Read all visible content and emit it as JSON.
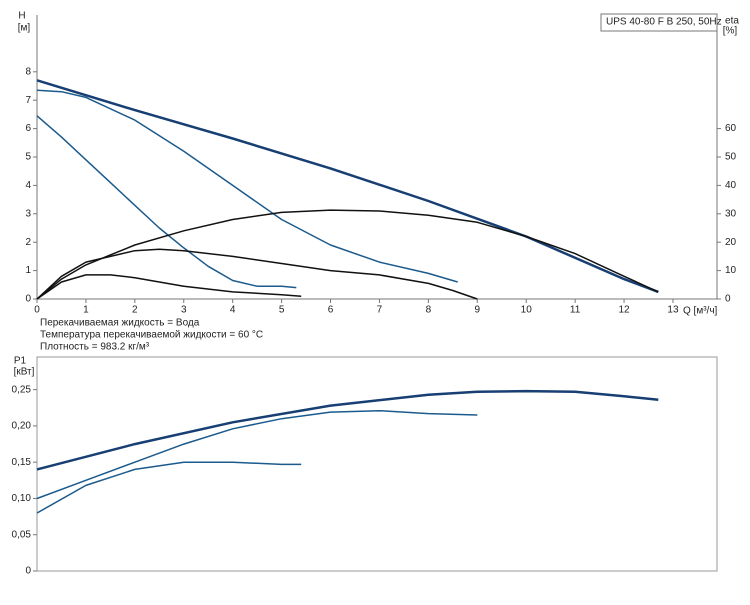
{
  "chart_data": [
    {
      "type": "line",
      "title": "UPS 40-80 F B 250, 50Hz",
      "x_label": "Q [м³/ч]",
      "y_label": "H",
      "y_unit": "[м]",
      "y2_label": "eta",
      "y2_unit": "[%]",
      "notes": [
        "Перекачиваемая жидкость = Вода",
        "Температура перекачиваемой жидкости = 60 °C",
        "Плотность = 983.2 кг/м³"
      ],
      "xlim": [
        0,
        13.9
      ],
      "xticks": [
        0,
        1,
        2,
        3,
        4,
        5,
        6,
        7,
        8,
        9,
        10,
        11,
        12,
        13
      ],
      "ylim": [
        0,
        10
      ],
      "yticks": [
        0,
        1,
        2,
        3,
        4,
        5,
        6,
        7,
        8
      ],
      "y2lim": [
        0,
        100
      ],
      "y2ticks": [
        0,
        10,
        20,
        30,
        40,
        50,
        60
      ],
      "series": [
        {
          "color": "#173f73",
          "x": [
            0,
            2,
            4,
            6,
            8,
            10,
            12,
            12.7
          ],
          "values": [
            7.7,
            6.65,
            5.65,
            4.6,
            3.45,
            2.2,
            0.7,
            0.25
          ]
        },
        {
          "color": "#1b5a8c",
          "x": [
            0,
            0.5,
            1,
            2,
            3,
            4,
            5,
            6,
            7,
            8,
            8.6
          ],
          "values": [
            7.35,
            7.3,
            7.1,
            6.3,
            5.2,
            4.0,
            2.8,
            1.9,
            1.3,
            0.9,
            0.6
          ]
        },
        {
          "color": "#1b5a8c",
          "x": [
            0,
            0.5,
            1,
            1.5,
            2,
            2.5,
            3,
            3.5,
            4,
            4.5,
            5,
            5.3
          ],
          "values": [
            6.45,
            5.7,
            4.9,
            4.1,
            3.3,
            2.5,
            1.8,
            1.15,
            0.65,
            0.45,
            0.45,
            0.4
          ]
        },
        {
          "color": "#111111",
          "axis": "y2",
          "x": [
            0,
            0.5,
            1,
            2,
            3,
            4,
            5,
            6,
            7,
            8,
            9,
            10,
            11,
            12,
            12.7
          ],
          "values": [
            0,
            7,
            12,
            19,
            24,
            28,
            30.5,
            31.3,
            31,
            29.5,
            27,
            22,
            16,
            8,
            2.5
          ]
        },
        {
          "color": "#111111",
          "axis": "y2",
          "x": [
            0,
            0.5,
            1,
            2,
            2.5,
            3,
            4,
            5,
            6,
            7,
            8,
            8.5,
            9
          ],
          "values": [
            0,
            8,
            13,
            17,
            17.5,
            17,
            15,
            12.5,
            10,
            8.5,
            5.5,
            3,
            0
          ]
        },
        {
          "color": "#111111",
          "axis": "y2",
          "x": [
            0,
            0.5,
            1,
            1.5,
            2,
            3,
            4,
            5,
            5.4
          ],
          "values": [
            0,
            6,
            8.5,
            8.5,
            7.5,
            4.5,
            2.5,
            1.5,
            1
          ]
        }
      ]
    },
    {
      "type": "line",
      "y_label": "P1",
      "y_unit": "[кВт]",
      "xlim": [
        0,
        13.9
      ],
      "ylim": [
        0,
        0.295
      ],
      "yticks": [
        0,
        {
          "value": 0.05,
          "label": "0,05"
        },
        {
          "value": 0.1,
          "label": "0,10"
        },
        {
          "value": 0.15,
          "label": "0,15"
        },
        {
          "value": 0.2,
          "label": "0,20"
        },
        {
          "value": 0.25,
          "label": "0,25"
        }
      ],
      "series": [
        {
          "color": "#173f73",
          "x": [
            0,
            2,
            4,
            6,
            8,
            9,
            10,
            11,
            12,
            12.7
          ],
          "values": [
            0.14,
            0.175,
            0.205,
            0.228,
            0.243,
            0.247,
            0.248,
            0.247,
            0.241,
            0.236
          ]
        },
        {
          "color": "#1b5a8c",
          "x": [
            0,
            1,
            2,
            3,
            4,
            5,
            6,
            7,
            8,
            9
          ],
          "values": [
            0.1,
            0.125,
            0.15,
            0.175,
            0.196,
            0.21,
            0.219,
            0.221,
            0.217,
            0.215
          ]
        },
        {
          "color": "#1b5a8c",
          "x": [
            0,
            1,
            2,
            3,
            4,
            5,
            5.4
          ],
          "values": [
            0.08,
            0.118,
            0.14,
            0.15,
            0.15,
            0.147,
            0.147
          ]
        }
      ]
    }
  ]
}
